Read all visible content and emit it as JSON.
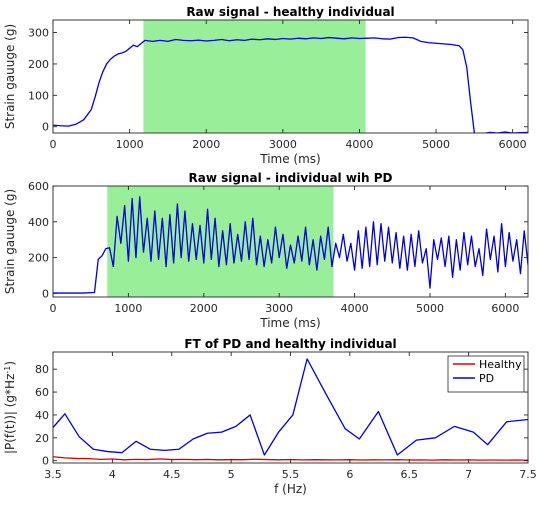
{
  "chart_data": [
    {
      "type": "line",
      "title": "Raw signal - healthy individual",
      "xlabel": "Time (ms)",
      "ylabel": "Strain gauuge (g)",
      "xlim": [
        0,
        6200
      ],
      "ylim": [
        -20,
        340
      ],
      "xticks": [
        0,
        1000,
        2000,
        3000,
        4000,
        5000,
        6000
      ],
      "yticks": [
        0,
        100,
        200,
        300
      ],
      "highlight": {
        "x0": 1180,
        "x1": 4080,
        "color": "#99ee99"
      },
      "grid": false,
      "series": [
        {
          "color": "#0000dd",
          "x": [
            0,
            100,
            200,
            300,
            400,
            500,
            550,
            600,
            650,
            700,
            750,
            800,
            850,
            900,
            950,
            1000,
            1050,
            1100,
            1150,
            1200,
            1300,
            1400,
            1500,
            1600,
            1700,
            1800,
            1900,
            2000,
            2100,
            2200,
            2300,
            2400,
            2500,
            2600,
            2700,
            2800,
            2900,
            3000,
            3100,
            3200,
            3300,
            3400,
            3500,
            3600,
            3700,
            3800,
            3900,
            4000,
            4100,
            4200,
            4300,
            4400,
            4500,
            4600,
            4700,
            4800,
            4900,
            5000,
            5100,
            5200,
            5300,
            5350,
            5400,
            5450,
            5500,
            5550,
            5600,
            5700,
            5800,
            5900,
            6000,
            6100,
            6200
          ],
          "y": [
            5,
            3,
            2,
            8,
            22,
            55,
            95,
            140,
            175,
            200,
            215,
            225,
            232,
            235,
            240,
            250,
            260,
            255,
            265,
            275,
            272,
            275,
            272,
            278,
            275,
            274,
            276,
            273,
            275,
            278,
            274,
            277,
            275,
            279,
            277,
            280,
            278,
            281,
            279,
            282,
            280,
            283,
            281,
            284,
            282,
            280,
            283,
            281,
            282,
            283,
            280,
            279,
            284,
            285,
            283,
            272,
            268,
            266,
            264,
            262,
            258,
            245,
            190,
            80,
            -20,
            -25,
            -22,
            -18,
            -20,
            -17,
            -20,
            -19,
            -18
          ]
        }
      ]
    },
    {
      "type": "line",
      "title": "Raw signal - individual wih PD",
      "xlabel": "Time (ms)",
      "ylabel": "Strain gauuge (g)",
      "xlim": [
        0,
        6300
      ],
      "ylim": [
        -20,
        600
      ],
      "xticks": [
        0,
        1000,
        2000,
        3000,
        4000,
        5000,
        6000
      ],
      "yticks": [
        0,
        200,
        400,
        600
      ],
      "highlight": {
        "x0": 720,
        "x1": 3720,
        "color": "#99ee99"
      },
      "grid": false,
      "series": [
        {
          "color": "#0000dd",
          "x": [
            0,
            200,
            400,
            550,
            600,
            650,
            700,
            750,
            800,
            850,
            900,
            950,
            1000,
            1050,
            1100,
            1150,
            1200,
            1250,
            1300,
            1350,
            1400,
            1450,
            1500,
            1550,
            1600,
            1650,
            1700,
            1750,
            1800,
            1850,
            1900,
            1950,
            2000,
            2050,
            2100,
            2150,
            2200,
            2250,
            2300,
            2350,
            2400,
            2450,
            2500,
            2550,
            2600,
            2650,
            2700,
            2750,
            2800,
            2850,
            2900,
            2950,
            3000,
            3050,
            3100,
            3150,
            3200,
            3250,
            3300,
            3350,
            3400,
            3450,
            3500,
            3550,
            3600,
            3650,
            3700,
            3750,
            3800,
            3850,
            3900,
            3950,
            4000,
            4050,
            4100,
            4150,
            4200,
            4250,
            4300,
            4350,
            4400,
            4450,
            4500,
            4550,
            4600,
            4650,
            4700,
            4750,
            4800,
            4850,
            4900,
            4950,
            5000,
            5050,
            5100,
            5150,
            5200,
            5250,
            5300,
            5350,
            5400,
            5450,
            5500,
            5550,
            5600,
            5650,
            5700,
            5750,
            5800,
            5850,
            5900,
            5950,
            6000,
            6050,
            6100,
            6150,
            6200,
            6250,
            6300
          ],
          "y": [
            2,
            2,
            2,
            5,
            190,
            210,
            250,
            255,
            150,
            430,
            280,
            490,
            180,
            530,
            200,
            540,
            230,
            420,
            180,
            460,
            190,
            420,
            150,
            440,
            170,
            500,
            200,
            460,
            180,
            390,
            190,
            380,
            170,
            470,
            190,
            420,
            150,
            350,
            160,
            390,
            170,
            330,
            180,
            400,
            190,
            420,
            160,
            320,
            150,
            300,
            170,
            370,
            200,
            330,
            140,
            270,
            170,
            320,
            180,
            370,
            160,
            300,
            130,
            320,
            190,
            370,
            150,
            280,
            200,
            330,
            180,
            280,
            130,
            350,
            140,
            370,
            150,
            400,
            160,
            390,
            180,
            370,
            170,
            340,
            140,
            320,
            130,
            330,
            150,
            350,
            170,
            250,
            30,
            300,
            190,
            310,
            150,
            320,
            90,
            300,
            130,
            340,
            160,
            320,
            150,
            250,
            100,
            360,
            190,
            320,
            120,
            390,
            150,
            340,
            180,
            300,
            110,
            350,
            160
          ]
        }
      ]
    },
    {
      "type": "line",
      "title": "FT of PD and healthy individual",
      "xlabel": "f (Hz)",
      "ylabel": "|P(f(t))| (g*Hz",
      "ylabel_superscript": "-1",
      "ylabel_suffix": ")",
      "xlim": [
        3.5,
        7.5
      ],
      "ylim": [
        -2,
        95
      ],
      "xticks": [
        3.5,
        4,
        4.5,
        5,
        5.5,
        6,
        6.5,
        7,
        7.5
      ],
      "xtick_labels": [
        "3.5",
        "4",
        "4.5",
        "5",
        "5.5",
        "6",
        "6.5",
        "7",
        "7.5"
      ],
      "yticks": [
        0,
        20,
        40,
        60,
        80
      ],
      "legend_position": "top-right",
      "grid": false,
      "series": [
        {
          "name": "Healthy",
          "color": "#dd0000",
          "x": [
            3.5,
            3.6,
            3.7,
            3.8,
            3.9,
            4.0,
            4.1,
            4.2,
            4.3,
            4.4,
            4.5,
            4.6,
            4.7,
            4.8,
            4.9,
            5.0,
            5.1,
            5.2,
            5.3,
            5.4,
            5.5,
            5.6,
            5.7,
            5.8,
            5.9,
            6.0,
            6.1,
            6.2,
            6.3,
            6.4,
            6.5,
            6.6,
            6.7,
            6.8,
            6.9,
            7.0,
            7.1,
            7.2,
            7.3,
            7.4,
            7.5
          ],
          "y": [
            3.5,
            2.5,
            2.0,
            1.8,
            1.2,
            1.5,
            0.8,
            1.2,
            1.0,
            1.6,
            1.0,
            1.2,
            0.9,
            1.1,
            0.8,
            1.0,
            0.9,
            1.3,
            1.0,
            0.8,
            1.0,
            0.7,
            0.9,
            0.8,
            0.7,
            0.9,
            0.6,
            0.8,
            0.7,
            0.9,
            0.6,
            0.7,
            0.5,
            0.8,
            0.6,
            0.7,
            0.5,
            0.6,
            0.5,
            0.6,
            0.4
          ]
        },
        {
          "name": "PD",
          "color": "#0000dd",
          "x": [
            3.5,
            3.6,
            3.72,
            3.84,
            3.96,
            4.08,
            4.2,
            4.32,
            4.44,
            4.56,
            4.68,
            4.8,
            4.92,
            5.04,
            5.16,
            5.28,
            5.4,
            5.52,
            5.64,
            5.8,
            5.96,
            6.08,
            6.24,
            6.4,
            6.56,
            6.72,
            6.88,
            7.04,
            7.16,
            7.32,
            7.5
          ],
          "y": [
            29,
            41,
            21,
            10,
            8,
            7,
            17,
            10,
            9,
            10,
            19,
            24,
            25,
            30,
            40,
            5,
            25,
            40,
            89,
            58,
            28,
            19,
            43,
            5,
            18,
            20,
            30,
            25,
            14,
            34,
            36
          ]
        }
      ]
    }
  ]
}
